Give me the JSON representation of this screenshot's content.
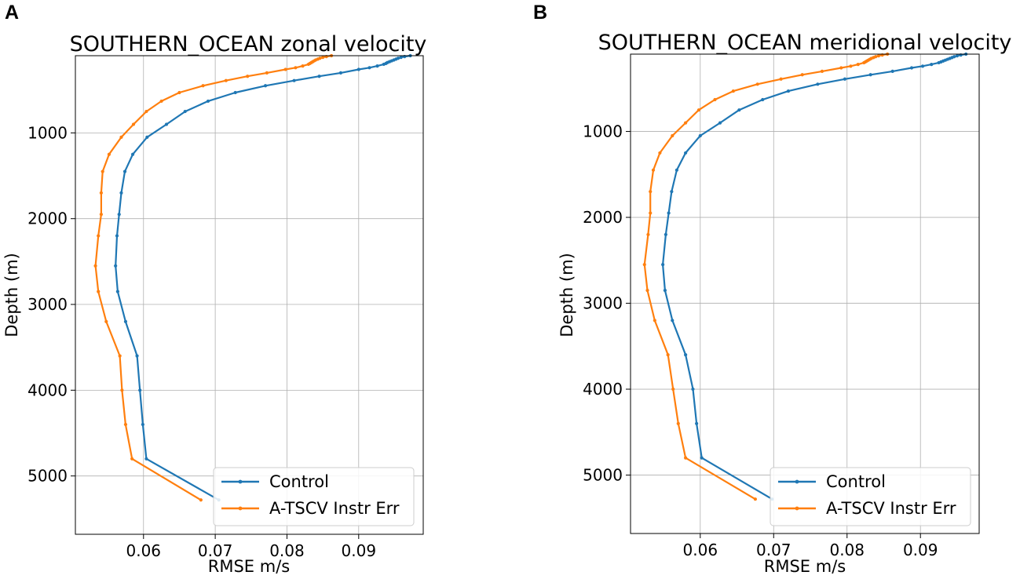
{
  "chart_data": [
    {
      "panel_label": "A",
      "type": "line",
      "title": "SOUTHERN_OCEAN zonal velocity",
      "xlabel": "RMSE m/s",
      "ylabel": "Depth (m)",
      "xlim": [
        0.0505,
        0.099
      ],
      "ylim": [
        5680,
        100
      ],
      "xticks": [
        0.06,
        0.07,
        0.08,
        0.09
      ],
      "xtick_labels": [
        "0.06",
        "0.07",
        "0.08",
        "0.09"
      ],
      "yticks": [
        1000,
        2000,
        3000,
        4000,
        5000
      ],
      "ytick_labels": [
        "1000",
        "2000",
        "3000",
        "4000",
        "5000"
      ],
      "grid": true,
      "legend_position": "lower-right",
      "series": [
        {
          "name": "Control",
          "color": "#1f77b4",
          "depth": [
            100,
            110,
            120,
            130,
            140,
            150,
            160,
            170,
            180,
            190,
            200,
            220,
            240,
            260,
            300,
            340,
            390,
            450,
            530,
            630,
            750,
            900,
            1050,
            1250,
            1450,
            1700,
            1950,
            2200,
            2550,
            2850,
            3200,
            3600,
            4000,
            4400,
            4800,
            5280
          ],
          "values": [
            0.0972,
            0.0964,
            0.0959,
            0.0955,
            0.0952,
            0.0949,
            0.0946,
            0.0943,
            0.094,
            0.0938,
            0.0935,
            0.0926,
            0.0915,
            0.09,
            0.0875,
            0.0845,
            0.081,
            0.077,
            0.0728,
            0.069,
            0.0658,
            0.0632,
            0.0605,
            0.0585,
            0.0574,
            0.0569,
            0.0566,
            0.0563,
            0.0561,
            0.0564,
            0.0575,
            0.0591,
            0.0595,
            0.0599,
            0.0604,
            0.0705
          ]
        },
        {
          "name": "A-TSCV Instr Err",
          "color": "#ff7f0e",
          "depth": [
            100,
            110,
            120,
            130,
            140,
            150,
            160,
            170,
            180,
            190,
            200,
            220,
            240,
            260,
            300,
            340,
            390,
            450,
            530,
            630,
            750,
            900,
            1050,
            1250,
            1450,
            1700,
            1950,
            2200,
            2550,
            2850,
            3200,
            3600,
            4000,
            4400,
            4800,
            5280
          ],
          "values": [
            0.0862,
            0.0855,
            0.085,
            0.0846,
            0.0843,
            0.084,
            0.0838,
            0.0836,
            0.0834,
            0.0832,
            0.083,
            0.0822,
            0.0812,
            0.0798,
            0.0772,
            0.0745,
            0.0715,
            0.0683,
            0.065,
            0.0625,
            0.0604,
            0.0586,
            0.0569,
            0.0552,
            0.0543,
            0.0541,
            0.0541,
            0.0537,
            0.0533,
            0.0537,
            0.0548,
            0.0567,
            0.057,
            0.0575,
            0.0584,
            0.068
          ]
        }
      ]
    },
    {
      "panel_label": "B",
      "type": "line",
      "title": "SOUTHERN_OCEAN meridional velocity",
      "xlabel": "RMSE m/s",
      "ylabel": "Depth (m)",
      "xlim": [
        0.0505,
        0.098
      ],
      "ylim": [
        5680,
        100
      ],
      "xticks": [
        0.06,
        0.07,
        0.08,
        0.09
      ],
      "xtick_labels": [
        "0.06",
        "0.07",
        "0.08",
        "0.09"
      ],
      "yticks": [
        1000,
        2000,
        3000,
        4000,
        5000
      ],
      "ytick_labels": [
        "1000",
        "2000",
        "3000",
        "4000",
        "5000"
      ],
      "grid": true,
      "legend_position": "lower-right",
      "series": [
        {
          "name": "Control",
          "color": "#1f77b4",
          "depth": [
            100,
            110,
            120,
            130,
            140,
            150,
            160,
            170,
            180,
            190,
            200,
            220,
            240,
            260,
            300,
            340,
            390,
            450,
            530,
            630,
            750,
            900,
            1050,
            1250,
            1450,
            1700,
            1950,
            2200,
            2550,
            2850,
            3200,
            3600,
            4000,
            4400,
            4800,
            5280
          ],
          "values": [
            0.0962,
            0.0955,
            0.095,
            0.0946,
            0.0943,
            0.094,
            0.0937,
            0.0934,
            0.0931,
            0.0928,
            0.0925,
            0.0915,
            0.0903,
            0.0888,
            0.0862,
            0.0832,
            0.0797,
            0.076,
            0.072,
            0.0685,
            0.0653,
            0.0627,
            0.06,
            0.058,
            0.0568,
            0.0561,
            0.0557,
            0.0553,
            0.0549,
            0.0552,
            0.0562,
            0.058,
            0.059,
            0.0595,
            0.0602,
            0.0698
          ]
        },
        {
          "name": "A-TSCV Instr Err",
          "color": "#ff7f0e",
          "depth": [
            100,
            110,
            120,
            130,
            140,
            150,
            160,
            170,
            180,
            190,
            200,
            220,
            240,
            260,
            300,
            340,
            390,
            450,
            530,
            630,
            750,
            900,
            1050,
            1250,
            1450,
            1700,
            1950,
            2200,
            2550,
            2850,
            3200,
            3600,
            4000,
            4400,
            4800,
            5280
          ],
          "values": [
            0.0855,
            0.0848,
            0.0843,
            0.0839,
            0.0836,
            0.0833,
            0.0831,
            0.0829,
            0.0827,
            0.0825,
            0.0823,
            0.0815,
            0.0805,
            0.0792,
            0.0766,
            0.0739,
            0.071,
            0.0678,
            0.0645,
            0.062,
            0.0598,
            0.058,
            0.0562,
            0.0545,
            0.0536,
            0.0532,
            0.0532,
            0.0529,
            0.0524,
            0.0528,
            0.0538,
            0.0556,
            0.0563,
            0.057,
            0.058,
            0.0675
          ]
        }
      ]
    }
  ]
}
